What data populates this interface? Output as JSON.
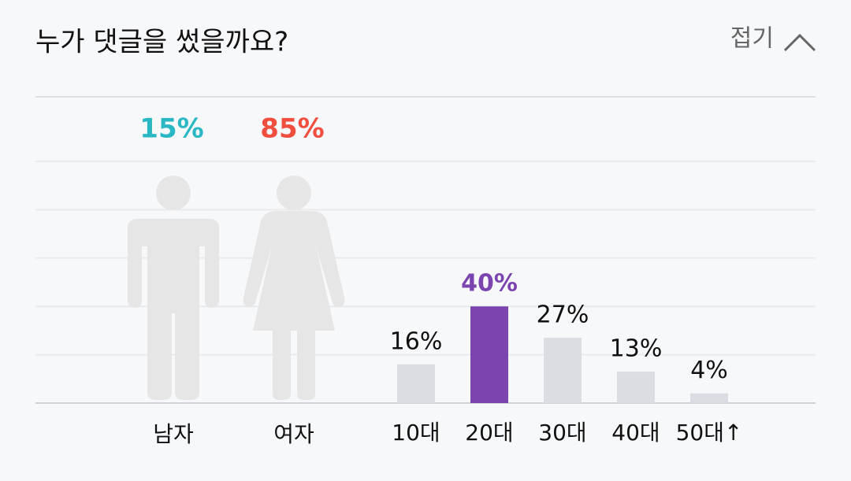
{
  "header": {
    "title": "누가 댓글을 썼을까요?",
    "toggle": "접기"
  },
  "gender": {
    "type": "pictogram",
    "categories": [
      "남자",
      "여자"
    ],
    "values": [
      15,
      85
    ],
    "value_labels": [
      "15%",
      "85%"
    ],
    "colors": [
      "#2ab7c4",
      "#f04e3e"
    ]
  },
  "age": {
    "type": "bar",
    "categories": [
      "10대",
      "20대",
      "30대",
      "40대",
      "50대↑"
    ],
    "values": [
      16,
      40,
      27,
      13,
      4
    ],
    "value_labels": [
      "16%",
      "40%",
      "27%",
      "13%",
      "4%"
    ],
    "color": "#dadde1",
    "highlight_color": "#7b44ae",
    "ylim": [
      0,
      100
    ],
    "yticks": [
      0,
      20,
      40,
      60,
      80,
      100
    ],
    "grid": true
  }
}
